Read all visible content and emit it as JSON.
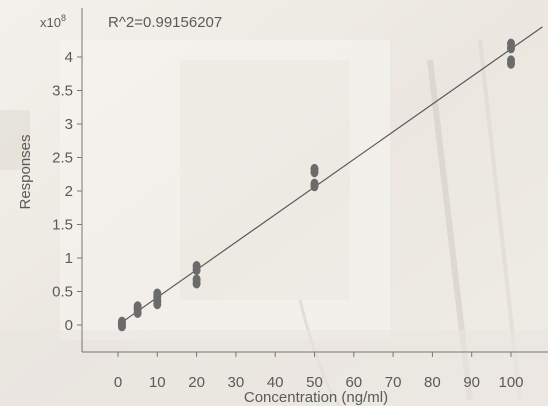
{
  "chart_data": {
    "type": "scatter",
    "annotation": "R^2=0.99156207",
    "multiplier": "x10",
    "multiplier_exponent": "8",
    "xlabel": "Concentration (ng/ml)",
    "ylabel": "Responses",
    "xlim": [
      -5,
      108
    ],
    "ylim": [
      -0.4,
      4.5
    ],
    "x_ticks": [
      0,
      10,
      20,
      30,
      40,
      50,
      60,
      70,
      80,
      90,
      100
    ],
    "y_ticks": [
      0,
      0.5,
      1,
      1.5,
      2,
      2.5,
      3,
      3.5,
      4
    ],
    "points": [
      {
        "x": 1,
        "y": -0.02
      },
      {
        "x": 1,
        "y": 0.02
      },
      {
        "x": 1,
        "y": 0.05
      },
      {
        "x": 5,
        "y": 0.18
      },
      {
        "x": 5,
        "y": 0.24
      },
      {
        "x": 5,
        "y": 0.28
      },
      {
        "x": 10,
        "y": 0.31
      },
      {
        "x": 10,
        "y": 0.36
      },
      {
        "x": 10,
        "y": 0.42
      },
      {
        "x": 10,
        "y": 0.47
      },
      {
        "x": 20,
        "y": 0.62
      },
      {
        "x": 20,
        "y": 0.68
      },
      {
        "x": 20,
        "y": 0.82
      },
      {
        "x": 20,
        "y": 0.88
      },
      {
        "x": 50,
        "y": 2.07
      },
      {
        "x": 50,
        "y": 2.11
      },
      {
        "x": 50,
        "y": 2.28
      },
      {
        "x": 50,
        "y": 2.33
      },
      {
        "x": 100,
        "y": 3.9
      },
      {
        "x": 100,
        "y": 3.95
      },
      {
        "x": 100,
        "y": 4.13
      },
      {
        "x": 100,
        "y": 4.2
      }
    ],
    "fit_line": {
      "x": [
        0,
        108
      ],
      "y": [
        0.0,
        4.45
      ]
    },
    "colors": {
      "points": "#6b6b6b",
      "line": "#5a5a5a",
      "axis": "#777777"
    }
  }
}
